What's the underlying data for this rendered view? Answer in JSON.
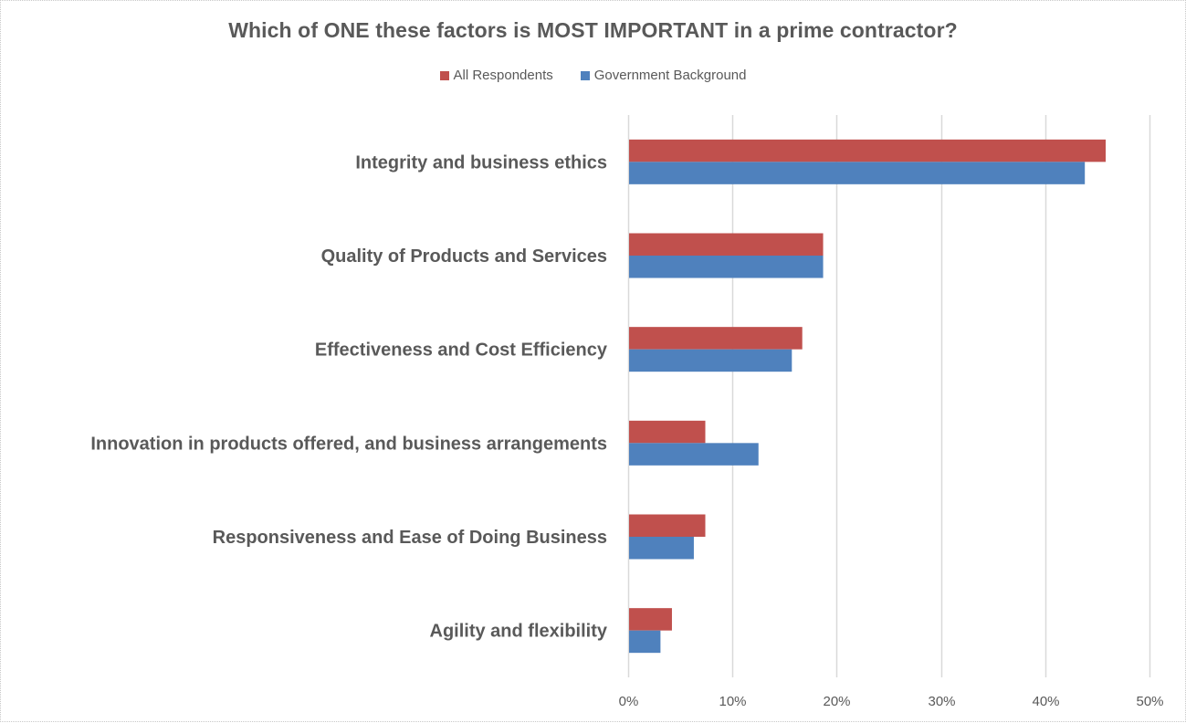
{
  "chart_data": {
    "type": "bar",
    "orientation": "horizontal",
    "title": "Which of  ONE these factors is MOST IMPORTANT in a prime contractor?",
    "xlabel": "",
    "ylabel": "",
    "xlim": [
      0,
      50
    ],
    "x_ticks": [
      "0%",
      "10%",
      "20%",
      "30%",
      "40%",
      "50%"
    ],
    "x_tick_values": [
      0,
      10,
      20,
      30,
      40,
      50
    ],
    "grid": true,
    "legend_position": "top-center",
    "categories": [
      "Integrity and business ethics",
      "Quality of Products and Services",
      "Effectiveness and Cost Efficiency",
      "Innovation in products offered, and business arrangements",
      "Responsiveness and Ease of Doing Business",
      "Agility and flexibility"
    ],
    "series": [
      {
        "name": "All Respondents",
        "color": "#C0504D",
        "values": [
          45.8,
          18.7,
          16.7,
          7.4,
          7.4,
          4.2
        ]
      },
      {
        "name": "Government Background",
        "color": "#4F81BD",
        "values": [
          43.8,
          18.7,
          15.7,
          12.5,
          6.3,
          3.1
        ]
      }
    ],
    "value_unit": "%"
  },
  "colors": {
    "text": "#595959",
    "gridline": "#D9D9D9"
  }
}
